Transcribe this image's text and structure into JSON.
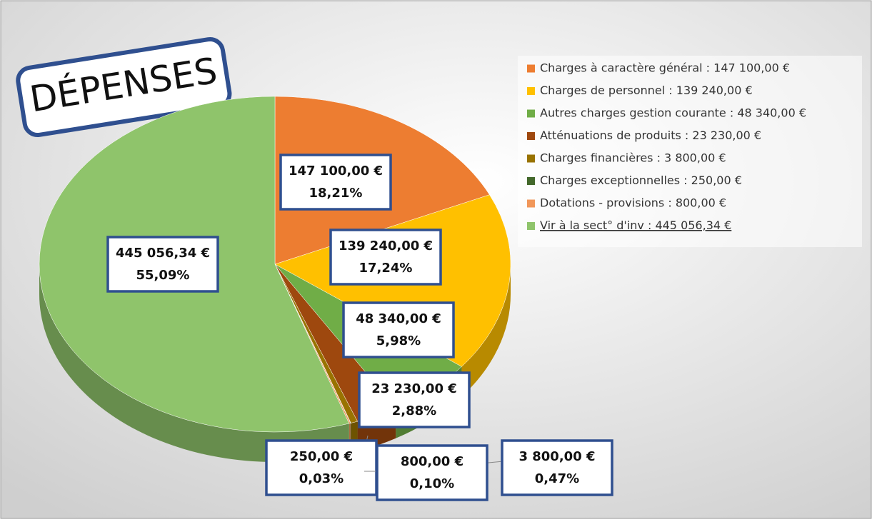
{
  "chart_data": {
    "type": "pie",
    "title": "DÉPENSES",
    "categories": [
      "Charges à caractère général : 147 100,00 €",
      "Charges de personnel : 139 240,00 €",
      "Autres charges gestion courante : 48 340,00 €",
      "Atténuations de produits : 23 230,00 €",
      "Charges financières : 3 800,00 €",
      "Charges exceptionnelles  : 250,00 €",
      "Dotations - provisions : 800,00 €",
      "Vir à la sect° d'inv : 445 056,34 €"
    ],
    "values": [
      147100,
      139240,
      48340,
      23230,
      3800,
      250,
      800,
      445056.34
    ],
    "value_labels": [
      "147 100,00 €",
      "139 240,00 €",
      "48 340,00 €",
      "23 230,00 €",
      "3 800,00 €",
      "250,00 €",
      "800,00 €",
      "445 056,34 €"
    ],
    "percent_labels": [
      "18,21%",
      "17,24%",
      "5,98%",
      "2,88%",
      "0,47%",
      "0,03%",
      "0,10%",
      "55,09%"
    ],
    "colors": [
      "#ED7D31",
      "#FFC000",
      "#70AD47",
      "#9E480E",
      "#997300",
      "#43682B",
      "#F1975A",
      "#8FC46B"
    ]
  }
}
